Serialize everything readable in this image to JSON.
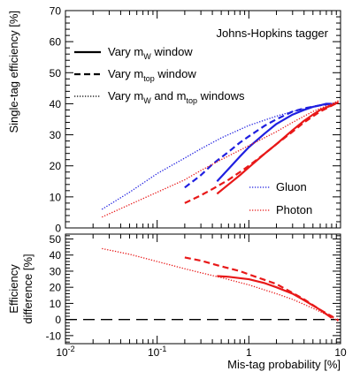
{
  "chart_data": [
    {
      "type": "line",
      "panel": "top",
      "annotation": "Johns-Hopkins tagger",
      "ylabel": "Single-tag efficiency [%]",
      "xscale": "log",
      "xlim": [
        0.01,
        10
      ],
      "ylim": [
        0,
        70
      ],
      "y_ticks": [
        0,
        10,
        20,
        30,
        40,
        50,
        60,
        70
      ],
      "legend_styles": [
        {
          "label_main": "Vary m",
          "sub1": "W",
          "label_mid": " window",
          "sub2": "",
          "label_end": "",
          "dash": "solid"
        },
        {
          "label_main": "Vary m",
          "sub1": "top",
          "label_mid": " window",
          "sub2": "",
          "label_end": "",
          "dash": "dashed"
        },
        {
          "label_main": "Vary m",
          "sub1": "W",
          "label_mid": " and m",
          "sub2": "top",
          "label_end": " windows",
          "dash": "dotted"
        }
      ],
      "legend_colors": [
        {
          "label": "Gluon",
          "color": "#1f1fe0"
        },
        {
          "label": "Photon",
          "color": "#e81818"
        }
      ],
      "series": [
        {
          "sample": "Gluon",
          "style": "solid",
          "color": "#1f1fe0",
          "x": [
            0.45,
            0.6,
            0.8,
            1.0,
            1.5,
            2.0,
            3.0,
            4.0,
            5.0,
            6.0,
            7.0,
            8.0
          ],
          "y": [
            15.0,
            19.0,
            23.0,
            26.0,
            30.5,
            33.5,
            36.5,
            38.0,
            39.0,
            39.5,
            40.0,
            40.0
          ]
        },
        {
          "sample": "Gluon",
          "style": "dashed",
          "color": "#1f1fe0",
          "x": [
            0.2,
            0.3,
            0.4,
            0.6,
            0.8,
            1.0,
            1.5,
            2.0,
            3.0,
            4.0,
            6.0,
            8.0
          ],
          "y": [
            13.0,
            17.0,
            20.5,
            24.5,
            27.5,
            29.5,
            33.0,
            35.0,
            37.5,
            38.5,
            39.5,
            40.0
          ]
        },
        {
          "sample": "Gluon",
          "style": "dotted",
          "color": "#1f1fe0",
          "x": [
            0.025,
            0.05,
            0.1,
            0.2,
            0.3,
            0.5,
            1.0,
            2.0,
            3.0,
            5.0,
            8.0,
            9.5
          ],
          "y": [
            6.0,
            11.5,
            17.5,
            22.5,
            25.5,
            29.0,
            33.0,
            36.0,
            37.5,
            39.0,
            40.0,
            40.5
          ]
        },
        {
          "sample": "Photon",
          "style": "solid",
          "color": "#e81818",
          "x": [
            0.45,
            0.6,
            0.8,
            1.0,
            1.5,
            2.0,
            3.0,
            4.0,
            5.0,
            6.0,
            8.0,
            9.5
          ],
          "y": [
            11.0,
            14.0,
            17.0,
            19.5,
            24.0,
            27.0,
            31.5,
            34.5,
            36.5,
            38.0,
            39.5,
            40.5
          ]
        },
        {
          "sample": "Photon",
          "style": "dashed",
          "color": "#e81818",
          "x": [
            0.2,
            0.3,
            0.4,
            0.6,
            0.8,
            1.0,
            1.5,
            2.0,
            3.0,
            4.0,
            6.0,
            9.5
          ],
          "y": [
            8.0,
            10.5,
            12.5,
            15.5,
            18.0,
            20.0,
            24.0,
            27.0,
            31.0,
            34.0,
            37.5,
            40.5
          ]
        },
        {
          "sample": "Photon",
          "style": "dotted",
          "color": "#e81818",
          "x": [
            0.025,
            0.05,
            0.1,
            0.2,
            0.3,
            0.5,
            1.0,
            2.0,
            3.0,
            5.0,
            8.0,
            9.5
          ],
          "y": [
            3.5,
            7.5,
            11.5,
            15.5,
            18.5,
            22.0,
            26.5,
            31.0,
            34.0,
            37.5,
            40.0,
            41.0
          ]
        }
      ]
    },
    {
      "type": "line",
      "panel": "bottom",
      "ylabel_line1": "Efficiency",
      "ylabel_line2": "difference [%]",
      "xlabel": "Mis-tag probability [%]",
      "xscale": "log",
      "xlim": [
        0.01,
        10
      ],
      "ylim": [
        -15,
        53
      ],
      "y_ticks": [
        -10,
        0,
        10,
        20,
        30,
        40,
        50
      ],
      "x_ticks": [
        0.01,
        0.1,
        1,
        10
      ],
      "x_tick_labels": [
        {
          "base": "10",
          "exp": "-2"
        },
        {
          "base": "10",
          "exp": "-1"
        },
        {
          "base": "1",
          "exp": ""
        },
        {
          "base": "10",
          "exp": ""
        }
      ],
      "reference_line": {
        "y": 0,
        "style": "long-dash"
      },
      "series": [
        {
          "style": "solid",
          "color": "#e81818",
          "x": [
            0.45,
            0.6,
            1.0,
            1.5,
            2.0,
            3.0,
            4.0,
            6.0,
            8.0
          ],
          "y": [
            27.0,
            26.5,
            25.0,
            22.5,
            20.0,
            16.0,
            12.0,
            6.0,
            1.0
          ]
        },
        {
          "style": "dashed",
          "color": "#e81818",
          "x": [
            0.2,
            0.3,
            0.5,
            0.8,
            1.0,
            1.5,
            2.0,
            3.0,
            4.0,
            6.0,
            8.0,
            9.5
          ],
          "y": [
            38.5,
            36.5,
            33.0,
            30.0,
            28.0,
            24.5,
            22.0,
            16.5,
            12.5,
            6.0,
            2.0,
            -0.5
          ]
        },
        {
          "style": "dotted",
          "color": "#e81818",
          "x": [
            0.025,
            0.05,
            0.1,
            0.2,
            0.3,
            0.5,
            1.0,
            2.0,
            3.0,
            5.0,
            8.0,
            9.5
          ],
          "y": [
            44.0,
            40.5,
            36.0,
            31.5,
            29.0,
            26.0,
            21.5,
            16.0,
            12.5,
            7.0,
            1.5,
            -1.0
          ]
        }
      ]
    }
  ]
}
